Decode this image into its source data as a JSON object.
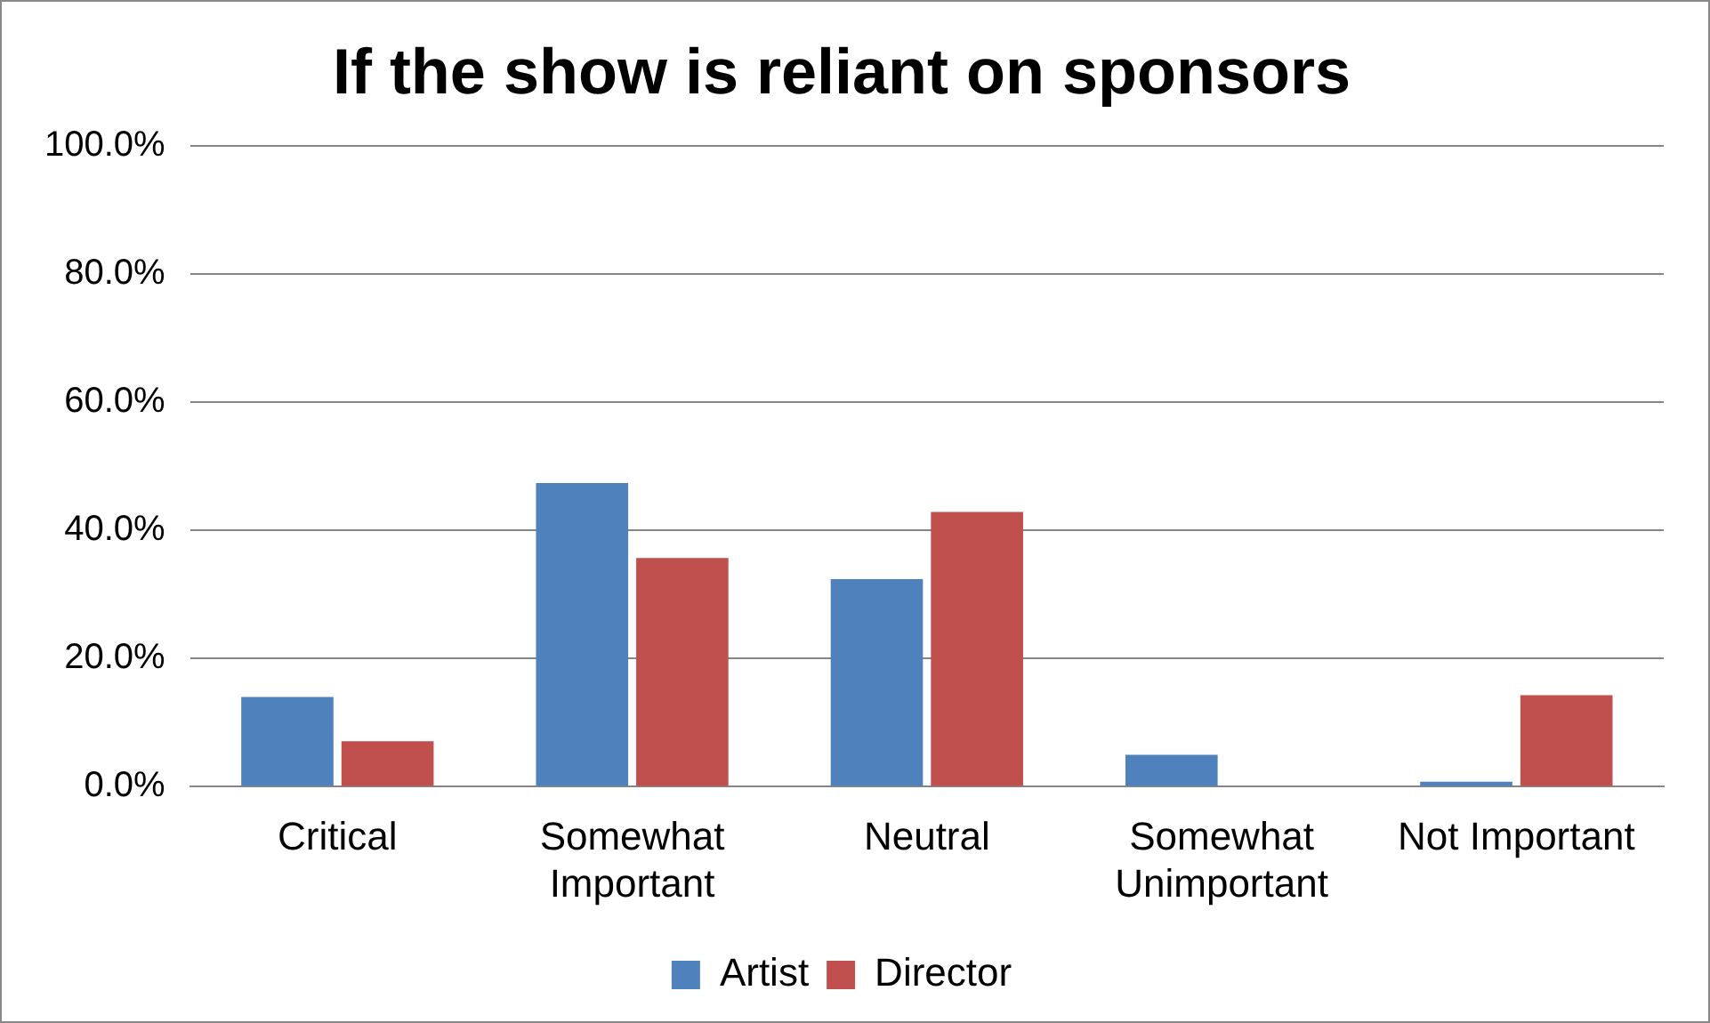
{
  "chart_data": {
    "type": "bar",
    "title": "If the show is reliant on sponsors",
    "categories": [
      "Critical",
      "Somewhat Important",
      "Neutral",
      "Somewhat Unimportant",
      "Not Important"
    ],
    "series": [
      {
        "name": "Artist",
        "color": "#4f81bd",
        "values": [
          14.0,
          47.4,
          32.4,
          5.0,
          0.8
        ]
      },
      {
        "name": "Director",
        "color": "#c0504d",
        "values": [
          7.1,
          35.7,
          42.9,
          0,
          14.3
        ]
      }
    ],
    "ylim": [
      0,
      100
    ],
    "yticks": [
      {
        "value": 0,
        "label": "0.0%"
      },
      {
        "value": 20,
        "label": "20.0%"
      },
      {
        "value": 40,
        "label": "40.0%"
      },
      {
        "value": 60,
        "label": "60.0%"
      },
      {
        "value": 80,
        "label": "80.0%"
      },
      {
        "value": 100,
        "label": "100.0%"
      }
    ],
    "grid": "y",
    "legend": "bottom"
  }
}
